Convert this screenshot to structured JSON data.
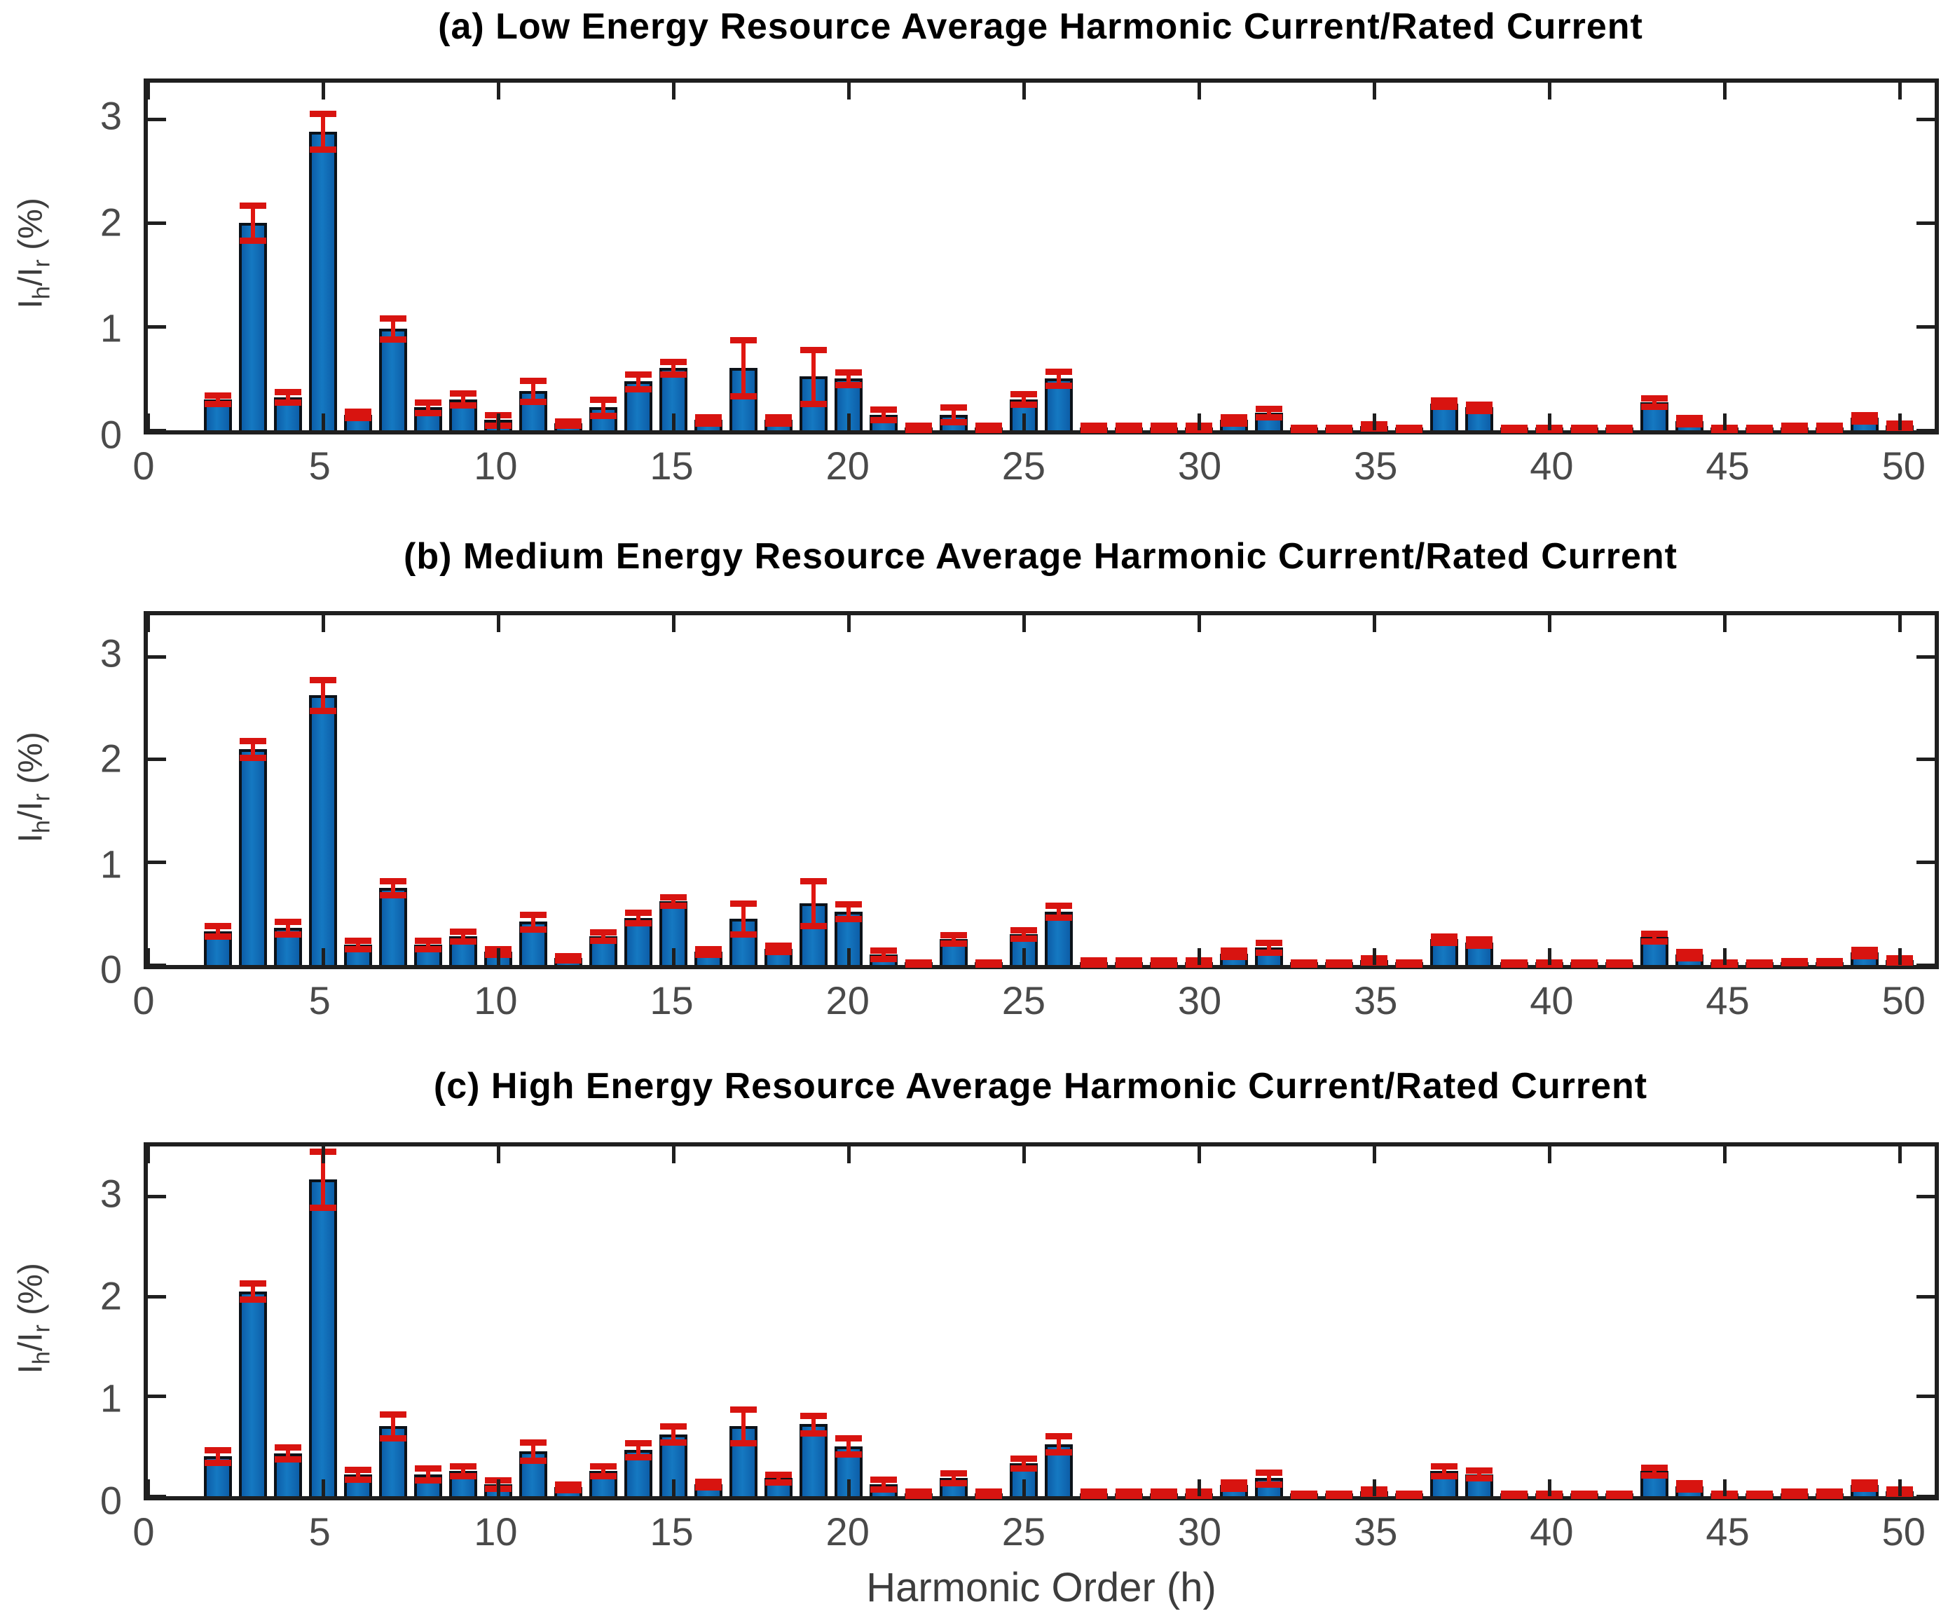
{
  "figure": {
    "xlabel": "Harmonic Order (h)",
    "ylabel_html_parts": {
      "i1": "I",
      "sub1": "h",
      "slash": "/I",
      "sub2": "r",
      "tail": " (%)"
    },
    "x_ticks": [
      0,
      5,
      10,
      15,
      20,
      25,
      30,
      35,
      40,
      45,
      50
    ],
    "y_ticks": [
      0,
      1,
      2,
      3
    ],
    "colors": {
      "bar_fill": "#1173b8",
      "bar_edge": "#0c1219",
      "error_bar": "#e01711",
      "axis": "#1f1f1f",
      "tick_label": "#4a4a4a",
      "title": "#000000"
    }
  },
  "chart_data": [
    {
      "type": "bar",
      "title": "(a) Low Energy Resource Average Harmonic Current/Rated Current",
      "ylabel": "Ih/Ir (%)",
      "xlabel": "",
      "xlim": [
        0,
        51
      ],
      "ylim": [
        0,
        3.35
      ],
      "grid": false,
      "legend": null,
      "error_bars": true,
      "x": [
        2,
        3,
        4,
        5,
        6,
        7,
        8,
        9,
        10,
        11,
        12,
        13,
        14,
        15,
        16,
        17,
        18,
        19,
        20,
        21,
        22,
        23,
        24,
        25,
        26,
        27,
        28,
        29,
        30,
        31,
        32,
        33,
        34,
        35,
        36,
        37,
        38,
        39,
        40,
        41,
        42,
        43,
        44,
        45,
        46,
        47,
        48,
        49,
        50
      ],
      "values": [
        0.3,
        2.0,
        0.32,
        2.88,
        0.15,
        0.98,
        0.22,
        0.3,
        0.1,
        0.38,
        0.07,
        0.22,
        0.47,
        0.6,
        0.1,
        0.6,
        0.1,
        0.52,
        0.5,
        0.15,
        0.03,
        0.15,
        0.03,
        0.3,
        0.5,
        0.03,
        0.03,
        0.03,
        0.03,
        0.1,
        0.17,
        0.02,
        0.02,
        0.04,
        0.02,
        0.26,
        0.22,
        0.02,
        0.02,
        0.02,
        0.02,
        0.27,
        0.09,
        0.02,
        0.02,
        0.03,
        0.03,
        0.12,
        0.05
      ],
      "errors": [
        0.04,
        0.17,
        0.05,
        0.17,
        0.03,
        0.1,
        0.05,
        0.06,
        0.05,
        0.1,
        0.02,
        0.08,
        0.07,
        0.06,
        0.03,
        0.27,
        0.03,
        0.26,
        0.06,
        0.05,
        0.02,
        0.07,
        0.02,
        0.05,
        0.07,
        0.02,
        0.02,
        0.02,
        0.02,
        0.03,
        0.04,
        0.01,
        0.01,
        0.02,
        0.01,
        0.03,
        0.03,
        0.01,
        0.01,
        0.01,
        0.01,
        0.04,
        0.03,
        0.01,
        0.01,
        0.02,
        0.02,
        0.03,
        0.02
      ]
    },
    {
      "type": "bar",
      "title": "(b) Medium Energy Resource Average Harmonic Current/Rated Current",
      "ylabel": "Ih/Ir (%)",
      "xlabel": "",
      "xlim": [
        0,
        51
      ],
      "ylim": [
        0,
        3.4
      ],
      "grid": false,
      "legend": null,
      "error_bars": true,
      "x": [
        2,
        3,
        4,
        5,
        6,
        7,
        8,
        9,
        10,
        11,
        12,
        13,
        14,
        15,
        16,
        17,
        18,
        19,
        20,
        21,
        22,
        23,
        24,
        25,
        26,
        27,
        28,
        29,
        30,
        31,
        32,
        33,
        34,
        35,
        36,
        37,
        38,
        39,
        40,
        41,
        42,
        43,
        44,
        45,
        46,
        47,
        48,
        49,
        50
      ],
      "values": [
        0.33,
        2.1,
        0.36,
        2.62,
        0.2,
        0.75,
        0.2,
        0.28,
        0.13,
        0.42,
        0.07,
        0.28,
        0.46,
        0.62,
        0.13,
        0.45,
        0.16,
        0.6,
        0.52,
        0.1,
        0.02,
        0.25,
        0.02,
        0.3,
        0.52,
        0.03,
        0.03,
        0.03,
        0.03,
        0.11,
        0.17,
        0.02,
        0.02,
        0.05,
        0.02,
        0.25,
        0.22,
        0.02,
        0.02,
        0.02,
        0.02,
        0.27,
        0.1,
        0.02,
        0.02,
        0.03,
        0.03,
        0.12,
        0.05
      ],
      "errors": [
        0.05,
        0.08,
        0.06,
        0.15,
        0.04,
        0.07,
        0.04,
        0.05,
        0.03,
        0.07,
        0.02,
        0.04,
        0.05,
        0.04,
        0.03,
        0.15,
        0.03,
        0.22,
        0.07,
        0.04,
        0.01,
        0.04,
        0.01,
        0.04,
        0.06,
        0.02,
        0.02,
        0.02,
        0.02,
        0.03,
        0.05,
        0.01,
        0.01,
        0.02,
        0.01,
        0.03,
        0.03,
        0.01,
        0.01,
        0.01,
        0.01,
        0.04,
        0.03,
        0.01,
        0.01,
        0.01,
        0.01,
        0.03,
        0.02
      ]
    },
    {
      "type": "bar",
      "title": "(c) High Energy Resource Average Harmonic Current/Rated Current",
      "ylabel": "Ih/Ir (%)",
      "xlabel": "Harmonic Order (h)",
      "xlim": [
        0,
        51
      ],
      "ylim": [
        0,
        3.5
      ],
      "grid": false,
      "legend": null,
      "error_bars": true,
      "x": [
        2,
        3,
        4,
        5,
        6,
        7,
        8,
        9,
        10,
        11,
        12,
        13,
        14,
        15,
        16,
        17,
        18,
        19,
        20,
        21,
        22,
        23,
        24,
        25,
        26,
        27,
        28,
        29,
        30,
        31,
        32,
        33,
        34,
        35,
        36,
        37,
        38,
        39,
        40,
        41,
        42,
        43,
        44,
        45,
        46,
        47,
        48,
        49,
        50
      ],
      "values": [
        0.4,
        2.05,
        0.43,
        3.17,
        0.22,
        0.7,
        0.22,
        0.25,
        0.12,
        0.45,
        0.09,
        0.25,
        0.46,
        0.62,
        0.12,
        0.7,
        0.18,
        0.72,
        0.5,
        0.12,
        0.03,
        0.18,
        0.03,
        0.33,
        0.52,
        0.03,
        0.03,
        0.03,
        0.03,
        0.11,
        0.18,
        0.02,
        0.02,
        0.05,
        0.02,
        0.25,
        0.22,
        0.02,
        0.02,
        0.02,
        0.02,
        0.25,
        0.1,
        0.02,
        0.02,
        0.03,
        0.03,
        0.11,
        0.05
      ],
      "errors": [
        0.06,
        0.08,
        0.06,
        0.28,
        0.05,
        0.12,
        0.06,
        0.05,
        0.04,
        0.09,
        0.03,
        0.05,
        0.07,
        0.08,
        0.03,
        0.17,
        0.04,
        0.09,
        0.08,
        0.05,
        0.02,
        0.05,
        0.02,
        0.05,
        0.08,
        0.02,
        0.02,
        0.02,
        0.02,
        0.03,
        0.06,
        0.01,
        0.01,
        0.02,
        0.01,
        0.05,
        0.04,
        0.01,
        0.01,
        0.01,
        0.01,
        0.04,
        0.03,
        0.01,
        0.01,
        0.02,
        0.02,
        0.03,
        0.02
      ]
    }
  ]
}
